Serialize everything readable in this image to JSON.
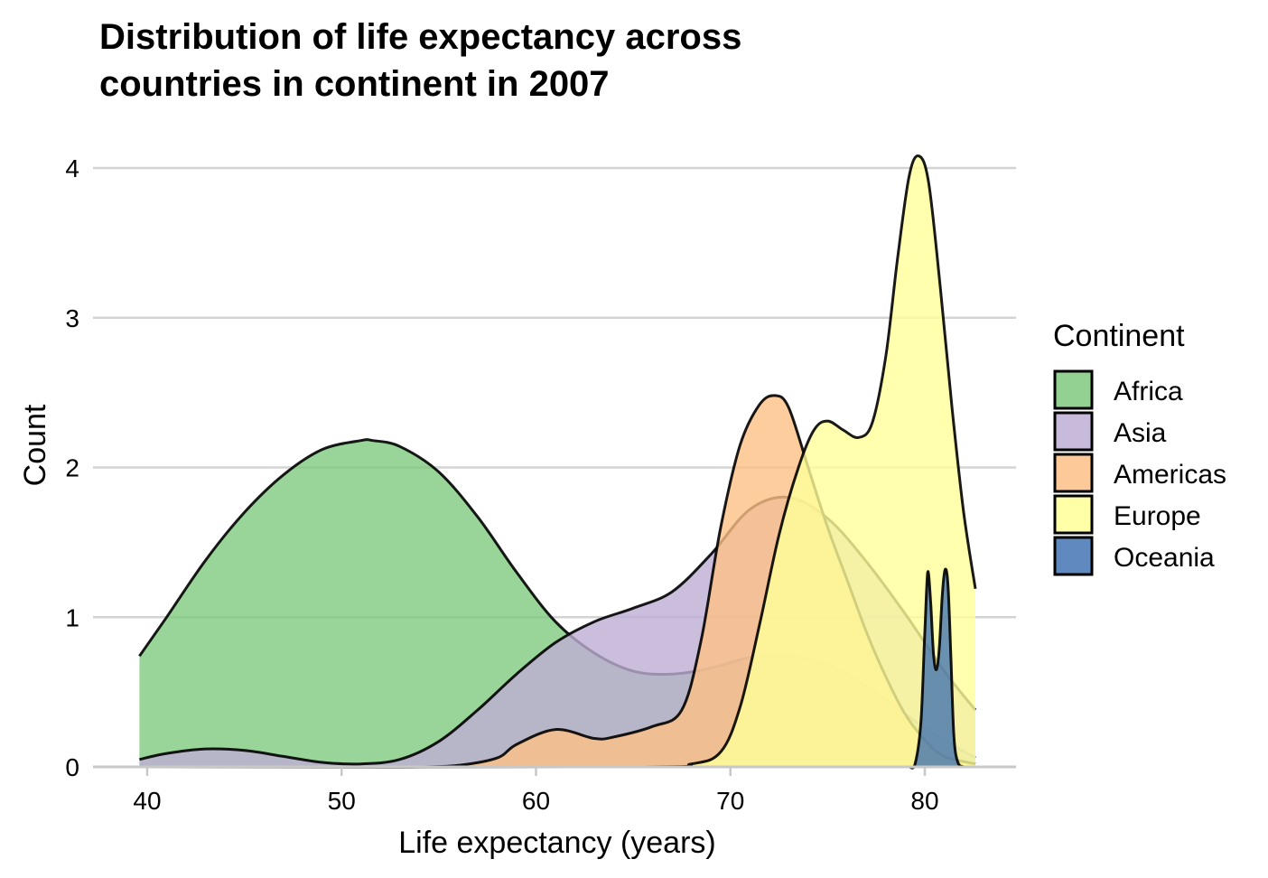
{
  "chart_data": {
    "type": "area",
    "subtype": "density",
    "title_lines": [
      "Distribution of life expectancy across",
      "countries in continent in 2007"
    ],
    "xlabel": "Life expectancy (years)",
    "ylabel": "Count",
    "xlim": [
      37.2,
      85.0
    ],
    "ylim": [
      0,
      4.1
    ],
    "x_ticks": [
      40,
      50,
      60,
      70,
      80
    ],
    "x_tick_labels": [
      "40",
      "50",
      "60",
      "70",
      "80"
    ],
    "y_ticks": [
      0,
      1,
      2,
      3,
      4
    ],
    "y_tick_labels": [
      "0",
      "1",
      "2",
      "3",
      "4"
    ],
    "grid": "horizontal-major",
    "legend": {
      "title": "Continent",
      "position": "right",
      "entries": [
        "Africa",
        "Asia",
        "Americas",
        "Europe",
        "Oceania"
      ]
    },
    "series": [
      {
        "name": "Africa",
        "color": "#7fc97f",
        "opacity": 0.8,
        "x": [
          39.6,
          41,
          43,
          45,
          47,
          49,
          51,
          51.6,
          53,
          55,
          57,
          59,
          61,
          63,
          65,
          67,
          69,
          71,
          73,
          75,
          77,
          79,
          81,
          82.6
        ],
        "y": [
          0.74,
          1.0,
          1.38,
          1.7,
          1.95,
          2.12,
          2.18,
          2.18,
          2.14,
          1.97,
          1.67,
          1.3,
          0.97,
          0.76,
          0.64,
          0.62,
          0.66,
          0.73,
          0.74,
          0.68,
          0.54,
          0.35,
          0.18,
          0.06
        ]
      },
      {
        "name": "Asia",
        "color": "#beaed4",
        "opacity": 0.8,
        "x": [
          39.6,
          41,
          43,
          45,
          47,
          49,
          51,
          53,
          55,
          57,
          59,
          61,
          63,
          65,
          67,
          69,
          71,
          73,
          75,
          77,
          79,
          81,
          82.6
        ],
        "y": [
          0.05,
          0.09,
          0.12,
          0.11,
          0.07,
          0.03,
          0.02,
          0.05,
          0.17,
          0.38,
          0.62,
          0.83,
          0.97,
          1.06,
          1.17,
          1.42,
          1.72,
          1.8,
          1.66,
          1.37,
          1.02,
          0.64,
          0.38
        ]
      },
      {
        "name": "Americas",
        "color": "#fdc086",
        "opacity": 0.8,
        "x": [
          39.6,
          50,
          54,
          56,
          58,
          59,
          61,
          63,
          64,
          66,
          67.5,
          68.5,
          69.5,
          70.5,
          71.5,
          72.3,
          73,
          74,
          75,
          76,
          77,
          78,
          79,
          80,
          81,
          82.6
        ],
        "y": [
          0.0,
          0.0,
          0.0,
          0.01,
          0.06,
          0.15,
          0.25,
          0.19,
          0.2,
          0.27,
          0.38,
          0.85,
          1.6,
          2.15,
          2.42,
          2.48,
          2.4,
          2.0,
          1.6,
          1.25,
          0.9,
          0.6,
          0.35,
          0.18,
          0.07,
          0.02
        ]
      },
      {
        "name": "Europe",
        "color": "#ffff99",
        "opacity": 0.8,
        "x": [
          39.6,
          65,
          68,
          69.5,
          70.5,
          71.5,
          72.5,
          73.5,
          74.3,
          75,
          75.8,
          76.6,
          77.3,
          78,
          78.6,
          79.2,
          79.7,
          80.2,
          80.8,
          81.4,
          82,
          82.6
        ],
        "y": [
          0.0,
          0.0,
          0.02,
          0.1,
          0.4,
          0.95,
          1.55,
          2.0,
          2.25,
          2.31,
          2.25,
          2.2,
          2.3,
          2.75,
          3.4,
          3.95,
          4.08,
          3.9,
          3.2,
          2.4,
          1.7,
          1.19
        ]
      },
      {
        "name": "Oceania",
        "color": "#386cb0",
        "opacity": 0.75,
        "x": [
          79.2,
          79.5,
          79.8,
          80.0,
          80.15,
          80.3,
          80.45,
          80.6,
          80.75,
          80.9,
          81.05,
          81.2,
          81.35,
          81.5,
          81.7,
          82.0
        ],
        "y": [
          0.0,
          0.02,
          0.3,
          0.9,
          1.3,
          1.1,
          0.75,
          0.65,
          0.8,
          1.15,
          1.32,
          1.2,
          0.7,
          0.2,
          0.03,
          0.0
        ]
      }
    ]
  }
}
